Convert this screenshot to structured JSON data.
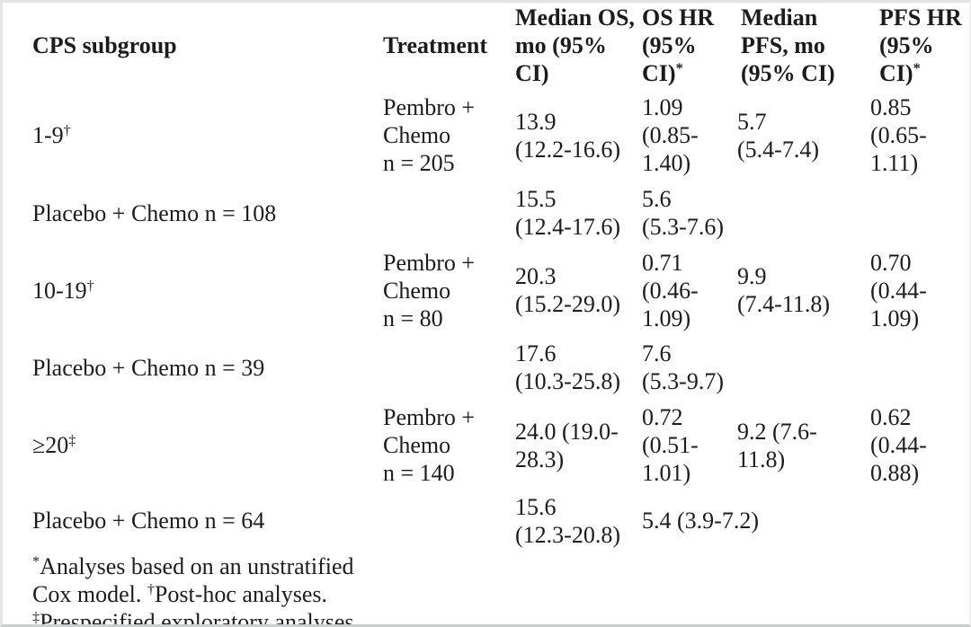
{
  "colors": {
    "text": "#1c1c1c",
    "background": "#ffffff",
    "page_edge": "#c9ced1"
  },
  "table": {
    "columns": [
      {
        "label": "CPS subgroup"
      },
      {
        "label": "Treatment"
      },
      {
        "label": "Median OS,\nmo (95%\nCI)"
      },
      {
        "label": "OS HR\n(95%\nCI)^{*}"
      },
      {
        "label": "Median\nPFS, mo\n(95% CI)"
      },
      {
        "label": "PFS HR\n(95%\nCI)^{*}"
      }
    ],
    "rows": [
      {
        "subgroup": "1-9^{†}",
        "treatment": "Pembro +\nChemo\nn = 205",
        "median_os": "13.9\n(12.2-16.6)",
        "os_hr": "1.09\n(0.85-\n1.40)",
        "median_pfs": "5.7\n(5.4-7.4)",
        "pfs_hr": "0.85\n(0.65-\n1.11)"
      },
      {
        "subgroup": "Placebo + Chemo n = 108",
        "treatment": "",
        "median_os": "15.5\n(12.4-17.6)",
        "os_hr": "5.6\n(5.3-7.6)",
        "median_pfs": "",
        "pfs_hr": ""
      },
      {
        "subgroup": "10-19^{†}",
        "treatment": "Pembro +\nChemo\nn = 80",
        "median_os": "20.3\n(15.2-29.0)",
        "os_hr": "0.71\n(0.46-\n1.09)",
        "median_pfs": "9.9\n(7.4-11.8)",
        "pfs_hr": "0.70\n(0.44-\n1.09)"
      },
      {
        "subgroup": "Placebo + Chemo n = 39",
        "treatment": "",
        "median_os": "17.6\n(10.3-25.8)",
        "os_hr": "7.6\n(5.3-9.7)",
        "median_pfs": "",
        "pfs_hr": ""
      },
      {
        "subgroup": "≥20^{‡}",
        "treatment": "Pembro +\nChemo\nn = 140",
        "median_os": "24.0 (19.0-\n28.3)",
        "os_hr": "0.72\n(0.51-\n1.01)",
        "median_pfs": "9.2 (7.6-\n11.8)",
        "pfs_hr": "0.62\n(0.44-\n0.88)"
      },
      {
        "subgroup": "Placebo + Chemo n = 64",
        "treatment": "",
        "median_os": "15.6\n(12.3-20.8)",
        "os_hr": "5.4 (3.9-7.2)",
        "median_pfs": "",
        "pfs_hr": ""
      }
    ],
    "footnote": "^{*}Analyses based on an unstratified\nCox model. ^{†}Post-hoc analyses.\n^{‡}Prespecified exploratory analyses."
  }
}
